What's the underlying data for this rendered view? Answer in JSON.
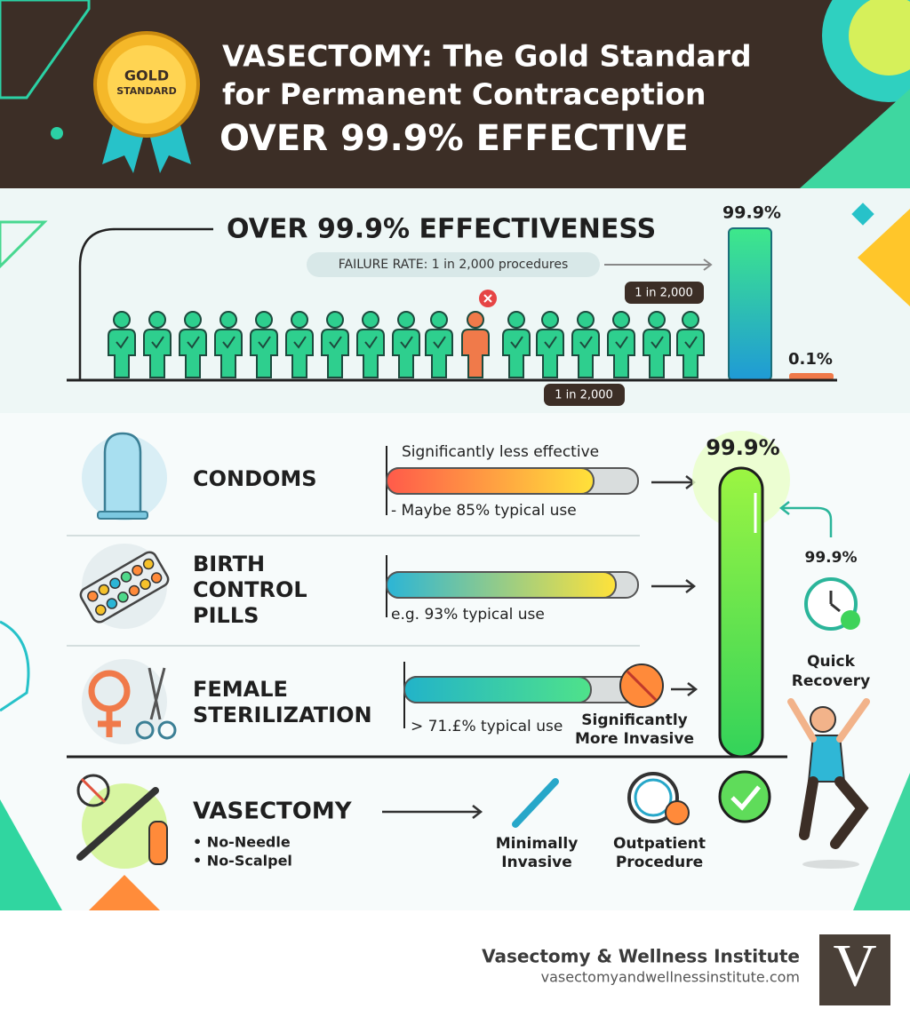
{
  "header": {
    "badge": [
      "GOLD",
      "STANDARD"
    ],
    "title_line1": "VASECTOMY: The Gold Standard",
    "title_line2": "for Permanent Contraception",
    "subtitle": "OVER 99.9% EFFECTIVE"
  },
  "effectiveness": {
    "title": "OVER 99.9% EFFECTIVENESS",
    "failure_rate": "FAILURE RATE: 1 in 2,000 procedures",
    "bar_label": "99.9%",
    "bar_tag": "1 in 2,000",
    "small_bar_label": "0.1%",
    "people_tag": "1 in 2,000"
  },
  "comparisons": [
    {
      "name": [
        "CONDOMS"
      ],
      "top_note": "Significantly less effective",
      "note": "- Maybe 85% typical use"
    },
    {
      "name": [
        "BIRTH",
        "CONTROL",
        "PILLS"
      ],
      "note": "e.g. 93% typical use"
    },
    {
      "name": [
        "FEMALE",
        "STERILIZATION"
      ],
      "note": "> 71.£% typical use",
      "side_note": [
        "Significantly",
        "More Invasive"
      ]
    }
  ],
  "vasectomy_bar_label": "99.9%",
  "recovery": {
    "value": "99.9%",
    "label": [
      "Quick",
      "Recovery"
    ]
  },
  "vasectomy": {
    "name": "VASECTOMY",
    "bullets": [
      "• No-Needle",
      "• No-Scalpel"
    ],
    "features": [
      [
        "Minimally",
        "Invasive"
      ],
      [
        "Outpatient",
        "Procedure"
      ]
    ]
  },
  "footer": {
    "organization": "Vasectomy & Wellness Institute",
    "url": "vasectomyandwellnessinstitute.com",
    "logo": "V"
  }
}
